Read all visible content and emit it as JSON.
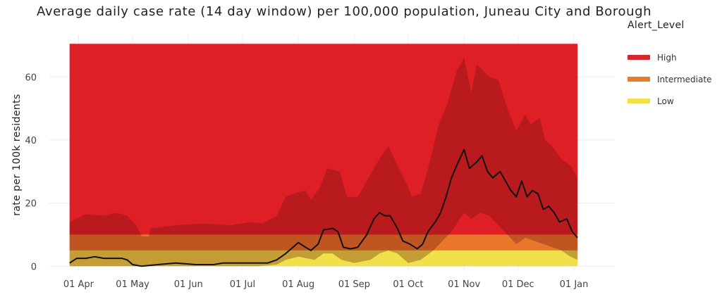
{
  "chart_data": {
    "type": "area",
    "title": "Average daily case rate (14 day window) per 100,000 population, Juneau City and Borough",
    "xlabel": "",
    "ylabel": "rate per 100k residents",
    "x_start": "2020-03-27",
    "x_end": "2021-01-03",
    "xlim": [
      "2020-03-24",
      "2021-01-10"
    ],
    "ylim": [
      -1.5,
      71
    ],
    "x_ticks": [
      {
        "date": "2020-04-01",
        "label": "01 Apr"
      },
      {
        "date": "2020-05-01",
        "label": "01 May"
      },
      {
        "date": "2020-06-01",
        "label": "01 Jun"
      },
      {
        "date": "2020-07-01",
        "label": "01 Jul"
      },
      {
        "date": "2020-08-01",
        "label": "01 Aug"
      },
      {
        "date": "2020-09-01",
        "label": "01 Sep"
      },
      {
        "date": "2020-10-01",
        "label": "01 Oct"
      },
      {
        "date": "2020-11-01",
        "label": "01 Nov"
      },
      {
        "date": "2020-12-01",
        "label": "01 Dec"
      },
      {
        "date": "2021-01-01",
        "label": "01 Jan"
      }
    ],
    "y_ticks": [
      0,
      20,
      40,
      60
    ],
    "grid": true,
    "alert_bands": [
      {
        "name": "Low",
        "from": 0,
        "to": 5,
        "color": "#f0e04a"
      },
      {
        "name": "Intermediate",
        "from": 5,
        "to": 10,
        "color": "#e8772a"
      },
      {
        "name": "High",
        "from": 10,
        "to": 70.5,
        "color": "#df1f26"
      }
    ],
    "series": [
      {
        "role": "confidence_upper",
        "points": [
          [
            "2020-03-27",
            14
          ],
          [
            "2020-04-05",
            16.5
          ],
          [
            "2020-04-15",
            16
          ],
          [
            "2020-04-22",
            17
          ],
          [
            "2020-04-28",
            16
          ],
          [
            "2020-05-03",
            13
          ],
          [
            "2020-05-06",
            9.5
          ],
          [
            "2020-05-10",
            9.5
          ],
          [
            "2020-05-11",
            12
          ],
          [
            "2020-05-25",
            13
          ],
          [
            "2020-06-10",
            13.5
          ],
          [
            "2020-06-25",
            13
          ],
          [
            "2020-07-05",
            14
          ],
          [
            "2020-07-12",
            13.5
          ],
          [
            "2020-07-20",
            16
          ],
          [
            "2020-07-25",
            22
          ],
          [
            "2020-07-29",
            23
          ],
          [
            "2020-08-05",
            24
          ],
          [
            "2020-08-08",
            21
          ],
          [
            "2020-08-13",
            25
          ],
          [
            "2020-08-17",
            31
          ],
          [
            "2020-08-24",
            30
          ],
          [
            "2020-08-28",
            22
          ],
          [
            "2020-09-03",
            22
          ],
          [
            "2020-09-08",
            27
          ],
          [
            "2020-09-15",
            34
          ],
          [
            "2020-09-20",
            38
          ],
          [
            "2020-09-25",
            32
          ],
          [
            "2020-10-01",
            25
          ],
          [
            "2020-10-03",
            22
          ],
          [
            "2020-10-08",
            23
          ],
          [
            "2020-10-13",
            33
          ],
          [
            "2020-10-18",
            45
          ],
          [
            "2020-10-23",
            52
          ],
          [
            "2020-10-28",
            62
          ],
          [
            "2020-11-01",
            66
          ],
          [
            "2020-11-05",
            55
          ],
          [
            "2020-11-08",
            64
          ],
          [
            "2020-11-15",
            60
          ],
          [
            "2020-11-20",
            59
          ],
          [
            "2020-11-25",
            50
          ],
          [
            "2020-11-30",
            43
          ],
          [
            "2020-12-05",
            48
          ],
          [
            "2020-12-08",
            45
          ],
          [
            "2020-12-13",
            47
          ],
          [
            "2020-12-16",
            40
          ],
          [
            "2020-12-20",
            38
          ],
          [
            "2020-12-25",
            34
          ],
          [
            "2020-12-30",
            32
          ],
          [
            "2021-01-03",
            28
          ]
        ]
      },
      {
        "role": "confidence_lower",
        "points": [
          [
            "2020-03-27",
            0
          ],
          [
            "2020-04-15",
            0
          ],
          [
            "2020-04-30",
            0
          ],
          [
            "2020-05-20",
            0
          ],
          [
            "2020-06-20",
            0
          ],
          [
            "2020-07-10",
            0
          ],
          [
            "2020-07-20",
            0.5
          ],
          [
            "2020-07-25",
            2
          ],
          [
            "2020-08-01",
            3
          ],
          [
            "2020-08-10",
            2
          ],
          [
            "2020-08-15",
            4
          ],
          [
            "2020-08-20",
            4
          ],
          [
            "2020-08-25",
            2
          ],
          [
            "2020-09-01",
            1
          ],
          [
            "2020-09-10",
            2
          ],
          [
            "2020-09-15",
            4
          ],
          [
            "2020-09-20",
            5
          ],
          [
            "2020-09-25",
            4
          ],
          [
            "2020-10-01",
            1
          ],
          [
            "2020-10-08",
            2
          ],
          [
            "2020-10-15",
            5
          ],
          [
            "2020-10-20",
            8
          ],
          [
            "2020-10-25",
            11
          ],
          [
            "2020-11-01",
            17
          ],
          [
            "2020-11-05",
            15
          ],
          [
            "2020-11-10",
            17
          ],
          [
            "2020-11-15",
            16
          ],
          [
            "2020-11-20",
            13
          ],
          [
            "2020-11-25",
            10
          ],
          [
            "2020-11-30",
            7
          ],
          [
            "2020-12-05",
            9
          ],
          [
            "2020-12-10",
            8
          ],
          [
            "2020-12-15",
            7
          ],
          [
            "2020-12-20",
            6
          ],
          [
            "2020-12-25",
            5
          ],
          [
            "2020-12-30",
            3
          ],
          [
            "2021-01-03",
            2
          ]
        ]
      },
      {
        "role": "rate",
        "name": "rate",
        "points": [
          [
            "2020-03-27",
            1
          ],
          [
            "2020-03-31",
            2.5
          ],
          [
            "2020-04-05",
            2.5
          ],
          [
            "2020-04-10",
            3
          ],
          [
            "2020-04-15",
            2.5
          ],
          [
            "2020-04-20",
            2.5
          ],
          [
            "2020-04-25",
            2.5
          ],
          [
            "2020-04-28",
            2
          ],
          [
            "2020-05-01",
            0.5
          ],
          [
            "2020-05-06",
            0
          ],
          [
            "2020-05-15",
            0.5
          ],
          [
            "2020-05-25",
            1
          ],
          [
            "2020-06-05",
            0.5
          ],
          [
            "2020-06-15",
            0.5
          ],
          [
            "2020-06-20",
            1
          ],
          [
            "2020-06-30",
            1
          ],
          [
            "2020-07-05",
            1
          ],
          [
            "2020-07-15",
            1
          ],
          [
            "2020-07-20",
            2
          ],
          [
            "2020-07-25",
            4
          ],
          [
            "2020-07-28",
            5.5
          ],
          [
            "2020-08-01",
            7.5
          ],
          [
            "2020-08-05",
            6
          ],
          [
            "2020-08-08",
            5
          ],
          [
            "2020-08-12",
            7
          ],
          [
            "2020-08-15",
            11.5
          ],
          [
            "2020-08-20",
            12
          ],
          [
            "2020-08-23",
            11
          ],
          [
            "2020-08-26",
            6
          ],
          [
            "2020-08-30",
            5.5
          ],
          [
            "2020-09-03",
            6
          ],
          [
            "2020-09-08",
            10
          ],
          [
            "2020-09-12",
            15
          ],
          [
            "2020-09-15",
            17
          ],
          [
            "2020-09-18",
            16
          ],
          [
            "2020-09-21",
            16
          ],
          [
            "2020-09-25",
            12
          ],
          [
            "2020-09-28",
            8
          ],
          [
            "2020-10-02",
            7
          ],
          [
            "2020-10-06",
            5.5
          ],
          [
            "2020-10-09",
            7
          ],
          [
            "2020-10-12",
            11
          ],
          [
            "2020-10-16",
            14
          ],
          [
            "2020-10-19",
            17
          ],
          [
            "2020-10-22",
            22
          ],
          [
            "2020-10-25",
            28
          ],
          [
            "2020-10-28",
            32
          ],
          [
            "2020-11-01",
            37
          ],
          [
            "2020-11-04",
            31
          ],
          [
            "2020-11-08",
            33
          ],
          [
            "2020-11-11",
            35
          ],
          [
            "2020-11-14",
            30
          ],
          [
            "2020-11-17",
            28
          ],
          [
            "2020-11-21",
            30
          ],
          [
            "2020-11-24",
            27
          ],
          [
            "2020-11-27",
            24
          ],
          [
            "2020-11-30",
            22
          ],
          [
            "2020-12-03",
            27
          ],
          [
            "2020-12-06",
            22
          ],
          [
            "2020-12-09",
            24
          ],
          [
            "2020-12-12",
            23
          ],
          [
            "2020-12-15",
            18
          ],
          [
            "2020-12-18",
            19
          ],
          [
            "2020-12-21",
            17
          ],
          [
            "2020-12-24",
            14
          ],
          [
            "2020-12-28",
            15
          ],
          [
            "2020-12-31",
            11
          ],
          [
            "2021-01-03",
            9
          ]
        ]
      }
    ]
  },
  "legend": {
    "title": "Alert_Level",
    "items": [
      {
        "label": "High",
        "color": "#d7262c"
      },
      {
        "label": "Intermediate",
        "color": "#ec7a2b"
      },
      {
        "label": "Low",
        "color": "#f1e046"
      }
    ]
  }
}
